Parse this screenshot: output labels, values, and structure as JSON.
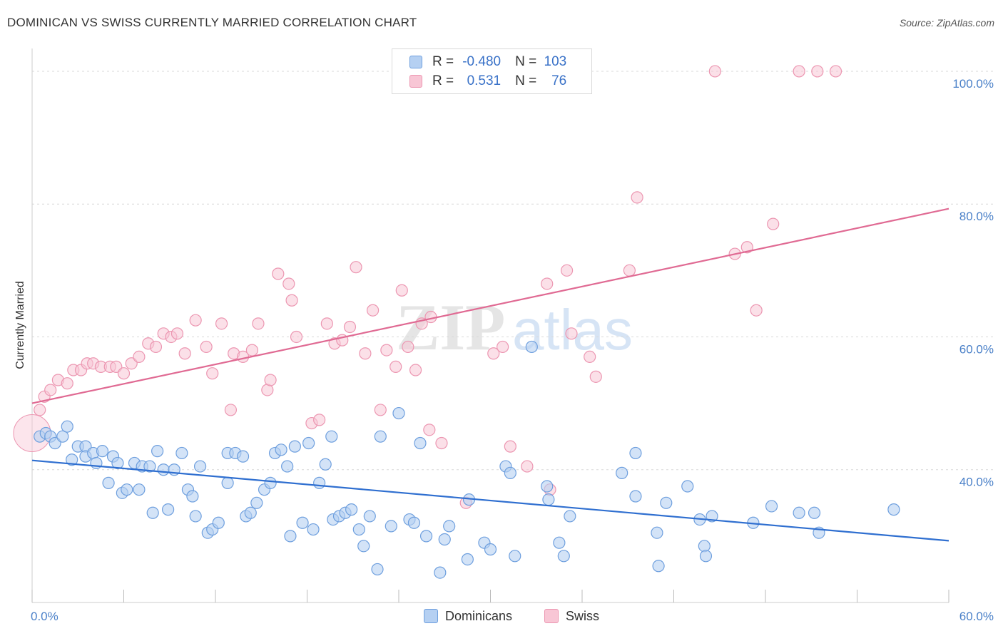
{
  "header": {
    "title": "DOMINICAN VS SWISS CURRENTLY MARRIED CORRELATION CHART",
    "source": "Source: ZipAtlas.com"
  },
  "legend": {
    "r_label": "R =",
    "n_label": "N =",
    "rows": [
      {
        "r": "-0.480",
        "n": "103",
        "color": "#7eaee8"
      },
      {
        "r": "0.531",
        "n": "76",
        "color": "#f5a3bd"
      }
    ]
  },
  "bottom_legend": {
    "dominicans": "Dominicans",
    "swiss": "Swiss"
  },
  "watermark": {
    "zip": "ZIP",
    "atlas": "atlas"
  },
  "colors": {
    "dominicans_fill": "#b5d0f2",
    "dominicans_stroke": "#6e9fde",
    "dominicans_line": "#2f6fd0",
    "swiss_fill": "#f8c6d5",
    "swiss_stroke": "#ec96b1",
    "swiss_line": "#e06a93",
    "grid": "#d8d8d8",
    "tick_text": "#4a80c8"
  },
  "chart_data": {
    "type": "scatter",
    "title": "DOMINICAN VS SWISS CURRENTLY MARRIED CORRELATION CHART",
    "xlabel": "",
    "ylabel": "Currently Married",
    "xlim": [
      0,
      60
    ],
    "ylim": [
      20,
      103
    ],
    "x_tick_labels": [
      "0.0%",
      "60.0%"
    ],
    "y_ticks": [
      40,
      60,
      80,
      100
    ],
    "y_tick_labels": [
      "40.0%",
      "60.0%",
      "80.0%",
      "100.0%"
    ],
    "grid": true,
    "legend_position": "top-center",
    "series": [
      {
        "name": "Dominicans",
        "r": -0.48,
        "n": 103,
        "trend": {
          "x": [
            0,
            60
          ],
          "y": [
            41.4,
            29.3
          ]
        },
        "points": [
          [
            0.5,
            45
          ],
          [
            0.9,
            45.5
          ],
          [
            1.2,
            45
          ],
          [
            1.5,
            44
          ],
          [
            2,
            45
          ],
          [
            2.3,
            46.5
          ],
          [
            2.6,
            41.5
          ],
          [
            3,
            43.5
          ],
          [
            3.5,
            43.5
          ],
          [
            3.5,
            42
          ],
          [
            4,
            42.5
          ],
          [
            4.2,
            41
          ],
          [
            4.6,
            42.8
          ],
          [
            5,
            38
          ],
          [
            5.3,
            42
          ],
          [
            5.6,
            41
          ],
          [
            5.9,
            36.5
          ],
          [
            6.2,
            37
          ],
          [
            6.7,
            41
          ],
          [
            7,
            37
          ],
          [
            7.2,
            40.5
          ],
          [
            7.7,
            40.5
          ],
          [
            7.9,
            33.5
          ],
          [
            8.2,
            42.8
          ],
          [
            8.6,
            40
          ],
          [
            8.9,
            34
          ],
          [
            9.3,
            40
          ],
          [
            9.8,
            42.5
          ],
          [
            10.2,
            37
          ],
          [
            10.5,
            36
          ],
          [
            10.7,
            33
          ],
          [
            11,
            40.5
          ],
          [
            11.5,
            30.5
          ],
          [
            11.8,
            31
          ],
          [
            12.2,
            32
          ],
          [
            12.8,
            42.5
          ],
          [
            12.8,
            38
          ],
          [
            13.3,
            42.5
          ],
          [
            13.8,
            42
          ],
          [
            14,
            33
          ],
          [
            14.3,
            33.5
          ],
          [
            14.7,
            35
          ],
          [
            15.2,
            37
          ],
          [
            15.6,
            38
          ],
          [
            15.9,
            42.5
          ],
          [
            16.3,
            43
          ],
          [
            16.7,
            40.5
          ],
          [
            16.9,
            30
          ],
          [
            17.2,
            43.5
          ],
          [
            17.7,
            32
          ],
          [
            18.1,
            44
          ],
          [
            18.4,
            31
          ],
          [
            18.8,
            38
          ],
          [
            19.2,
            40.8
          ],
          [
            19.6,
            45
          ],
          [
            19.7,
            32.5
          ],
          [
            20.1,
            33
          ],
          [
            20.5,
            33.5
          ],
          [
            20.9,
            34
          ],
          [
            21.4,
            31
          ],
          [
            21.7,
            28.5
          ],
          [
            22.1,
            33
          ],
          [
            22.6,
            25
          ],
          [
            22.8,
            45
          ],
          [
            23.5,
            31.5
          ],
          [
            24,
            48.5
          ],
          [
            24.7,
            32.5
          ],
          [
            25,
            32
          ],
          [
            25.4,
            44
          ],
          [
            25.8,
            30
          ],
          [
            26.7,
            24.5
          ],
          [
            27,
            29.5
          ],
          [
            27.3,
            31.5
          ],
          [
            28.5,
            26.5
          ],
          [
            28.6,
            35.5
          ],
          [
            29.6,
            29
          ],
          [
            30,
            28
          ],
          [
            31,
            40.5
          ],
          [
            31.3,
            39.5
          ],
          [
            31.6,
            27
          ],
          [
            32.7,
            58.5
          ],
          [
            33.7,
            37.5
          ],
          [
            33.8,
            35.5
          ],
          [
            34.5,
            29
          ],
          [
            34.8,
            27
          ],
          [
            35.2,
            33
          ],
          [
            38.6,
            39.5
          ],
          [
            39.5,
            36
          ],
          [
            39.5,
            42.5
          ],
          [
            40.9,
            30.5
          ],
          [
            41,
            25.5
          ],
          [
            41.5,
            35
          ],
          [
            42.9,
            37.5
          ],
          [
            43.7,
            32.5
          ],
          [
            44,
            28.5
          ],
          [
            44.1,
            27
          ],
          [
            44.5,
            33
          ],
          [
            47.2,
            32
          ],
          [
            48.4,
            34.5
          ],
          [
            50.2,
            33.5
          ],
          [
            51.2,
            33.5
          ],
          [
            51.5,
            30.5
          ],
          [
            56.4,
            34
          ]
        ]
      },
      {
        "name": "Swiss",
        "r": 0.531,
        "n": 76,
        "trend": {
          "x": [
            0,
            60
          ],
          "y": [
            50,
            79.3
          ]
        },
        "points": [
          [
            0.5,
            49
          ],
          [
            0.8,
            51
          ],
          [
            1.2,
            52
          ],
          [
            1.7,
            53.5
          ],
          [
            2.3,
            53
          ],
          [
            2.7,
            55
          ],
          [
            3.2,
            55
          ],
          [
            3.6,
            56
          ],
          [
            4,
            56
          ],
          [
            4.5,
            55.5
          ],
          [
            5.1,
            55.5
          ],
          [
            5.5,
            55.5
          ],
          [
            6,
            54.5
          ],
          [
            6.5,
            56
          ],
          [
            7,
            57
          ],
          [
            7.6,
            59
          ],
          [
            8.1,
            58.5
          ],
          [
            8.6,
            60.5
          ],
          [
            9.1,
            60
          ],
          [
            9.5,
            60.5
          ],
          [
            10,
            57.5
          ],
          [
            10.7,
            62.5
          ],
          [
            11.4,
            58.5
          ],
          [
            11.8,
            54.5
          ],
          [
            12.4,
            62
          ],
          [
            13,
            49
          ],
          [
            13.2,
            57.5
          ],
          [
            13.8,
            57
          ],
          [
            14.4,
            58
          ],
          [
            14.8,
            62
          ],
          [
            15.4,
            52
          ],
          [
            15.6,
            53.5
          ],
          [
            16.1,
            69.5
          ],
          [
            16.8,
            68
          ],
          [
            17,
            65.5
          ],
          [
            17.3,
            60
          ],
          [
            18.3,
            47
          ],
          [
            18.8,
            47.5
          ],
          [
            19.3,
            62
          ],
          [
            19.8,
            59
          ],
          [
            20.3,
            59.5
          ],
          [
            20.8,
            61.5
          ],
          [
            21.2,
            70.5
          ],
          [
            21.8,
            57.5
          ],
          [
            22.3,
            64
          ],
          [
            22.8,
            49
          ],
          [
            23.2,
            58
          ],
          [
            23.8,
            55.5
          ],
          [
            24.2,
            67
          ],
          [
            24.6,
            58.5
          ],
          [
            25.1,
            55
          ],
          [
            25.5,
            62
          ],
          [
            26.1,
            63
          ],
          [
            26,
            46
          ],
          [
            26.8,
            44
          ],
          [
            28.4,
            35
          ],
          [
            30.2,
            57.5
          ],
          [
            30.8,
            58.5
          ],
          [
            31.3,
            43.5
          ],
          [
            32.4,
            40.5
          ],
          [
            33.7,
            68
          ],
          [
            33.9,
            37
          ],
          [
            35,
            70
          ],
          [
            35.3,
            60.5
          ],
          [
            36.5,
            57
          ],
          [
            36.9,
            54
          ],
          [
            39.1,
            70
          ],
          [
            39.6,
            81
          ],
          [
            44.7,
            100
          ],
          [
            46,
            72.5
          ],
          [
            46.8,
            73.5
          ],
          [
            47.4,
            64
          ],
          [
            48.5,
            77
          ],
          [
            50.2,
            100
          ],
          [
            51.4,
            100
          ],
          [
            52.6,
            100
          ]
        ]
      }
    ]
  }
}
